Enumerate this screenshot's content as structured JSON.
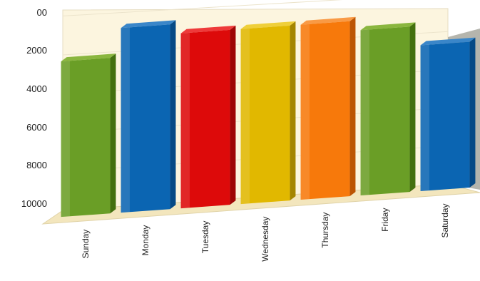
{
  "chart_data": {
    "type": "bar",
    "title": "",
    "xlabel": "",
    "ylabel": "",
    "categories": [
      "Sunday",
      "Monday",
      "Tuesday",
      "Wednesday",
      "Thursday",
      "Friday",
      "Saturday"
    ],
    "values": [
      8000,
      9500,
      9000,
      9000,
      9000,
      8500,
      7500
    ],
    "ytick_labels": [
      "00",
      "2000",
      "4000",
      "6000",
      "8000",
      "10000"
    ],
    "ytick_values": [
      0,
      2000,
      4000,
      6000,
      8000,
      10000
    ],
    "ylim": [
      0,
      10000
    ],
    "grid": true,
    "legend": "none",
    "colors": [
      "#6a9e26",
      "#0b65b2",
      "#dd0a0a",
      "#e1b800",
      "#f7790b",
      "#6a9e26",
      "#0b65b2"
    ],
    "side_colors": [
      "#43700f",
      "#064a86",
      "#9e0606",
      "#a48500",
      "#bc5503",
      "#43700f",
      "#064a86"
    ],
    "top_colors": [
      "#8ab63f",
      "#3a86c9",
      "#ee3a3a",
      "#efcf3a",
      "#f99a45",
      "#8ab63f",
      "#3a86c9"
    ],
    "wall_color": "#fcf5df",
    "floor_color": "#f3e6bd",
    "right_wall_color": "#b5b5ad"
  }
}
